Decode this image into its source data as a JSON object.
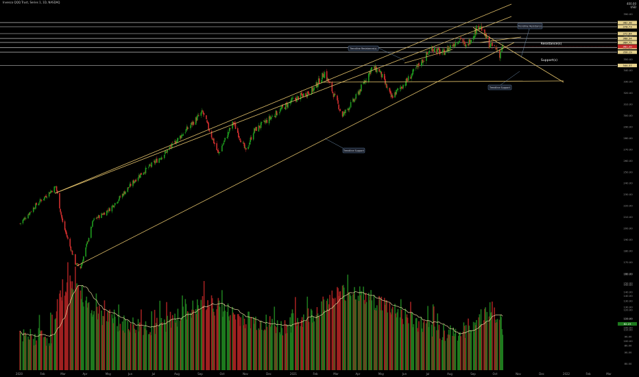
{
  "window": {
    "title": "Invesco QQQ Trust, Series 1, 1D, NASDAQ",
    "price_top": "400.00",
    "currency": "USD"
  },
  "colors": {
    "background": "#000000",
    "up": "#26a69a",
    "up_bar": "#1f9e1f",
    "down": "#d32f2f",
    "trend": "#e3c26b",
    "volume_ma": "#e8d8a0",
    "axis_text": "#9a9a9a"
  },
  "chart_data": [
    {
      "type": "line",
      "subtype": "candlestick",
      "title": "Invesco QQQ Trust, Series 1, 1D, NASDAQ",
      "ylabel": "USD",
      "ylim": [
        80,
        400
      ],
      "y_scale": "log",
      "x_ticks": [
        "2020",
        "Feb",
        "Mar",
        "Apr",
        "May",
        "Jun",
        "Jul",
        "Aug",
        "Sep",
        "Oct",
        "Nov",
        "Dec",
        "2021",
        "Feb",
        "Mar",
        "Apr",
        "May",
        "Jun",
        "Jul",
        "Aug",
        "Sep",
        "Oct",
        "Nov",
        "Dec",
        "2022",
        "Feb",
        "Mar"
      ],
      "y_ticks": [
        400,
        390,
        380,
        370,
        360,
        350,
        340,
        330,
        320,
        310,
        300,
        290,
        280,
        270,
        260,
        250,
        240,
        230,
        220,
        210,
        200,
        190,
        180,
        170,
        160,
        150,
        140,
        130,
        120,
        110,
        100,
        90,
        80
      ],
      "price_path": [
        {
          "x": "2020-01-02",
          "y": 204
        },
        {
          "x": "2020-01-24",
          "y": 221
        },
        {
          "x": "2020-02-19",
          "y": 237
        },
        {
          "x": "2020-02-28",
          "y": 205
        },
        {
          "x": "2020-03-16",
          "y": 169
        },
        {
          "x": "2020-03-23",
          "y": 165
        },
        {
          "x": "2020-04-09",
          "y": 207
        },
        {
          "x": "2020-05-01",
          "y": 217
        },
        {
          "x": "2020-06-08",
          "y": 246
        },
        {
          "x": "2020-07-13",
          "y": 266
        },
        {
          "x": "2020-09-02",
          "y": 303
        },
        {
          "x": "2020-09-23",
          "y": 266
        },
        {
          "x": "2020-10-13",
          "y": 294
        },
        {
          "x": "2020-10-30",
          "y": 268
        },
        {
          "x": "2020-11-09",
          "y": 286
        },
        {
          "x": "2020-12-30",
          "y": 313
        },
        {
          "x": "2021-01-28",
          "y": 323
        },
        {
          "x": "2021-02-12",
          "y": 338
        },
        {
          "x": "2021-03-08",
          "y": 300
        },
        {
          "x": "2021-03-25",
          "y": 315
        },
        {
          "x": "2021-04-16",
          "y": 342
        },
        {
          "x": "2021-04-26",
          "y": 340
        },
        {
          "x": "2021-05-12",
          "y": 316
        },
        {
          "x": "2021-06-01",
          "y": 330
        },
        {
          "x": "2021-07-06",
          "y": 360
        },
        {
          "x": "2021-07-19",
          "y": 355
        },
        {
          "x": "2021-08-13",
          "y": 369
        },
        {
          "x": "2021-08-19",
          "y": 360
        },
        {
          "x": "2021-09-07",
          "y": 381
        },
        {
          "x": "2021-09-20",
          "y": 363
        },
        {
          "x": "2021-09-30",
          "y": 359
        },
        {
          "x": "2021-10-04",
          "y": 354
        },
        {
          "x": "2021-10-08",
          "y": 361
        }
      ],
      "horizontal_levels": [
        {
          "value": 382.38,
          "label": "382.38"
        },
        {
          "value": 378.73,
          "label": "378.73"
        },
        {
          "value": 372.64,
          "label": "372.64"
        },
        {
          "value": 368.34,
          "label": "368.34"
        },
        {
          "value": 364.75,
          "label": "364.75"
        },
        {
          "value": 360.29,
          "label": "360.29"
        },
        {
          "value": 356.19,
          "label": "356.19"
        },
        {
          "value": 344.37,
          "label": "344.37"
        }
      ],
      "last_price": 361.2,
      "annotations": [
        {
          "text": "Trendline Resistance"
        },
        {
          "text": "Trendline Resistance(s)"
        },
        {
          "text": "Resistance(s)"
        },
        {
          "text": "Support(s)"
        },
        {
          "text": "Trendline Support"
        },
        {
          "text": "Trendline Support"
        }
      ]
    },
    {
      "type": "bar",
      "title": "Volume",
      "ylim": [
        75,
        165
      ],
      "y_ticks": [
        160,
        150,
        140,
        130,
        120,
        110,
        100,
        90,
        80
      ],
      "volume_profile": [
        {
          "x": "2020-01-02",
          "v": 88
        },
        {
          "x": "2020-02-15",
          "v": 90
        },
        {
          "x": "2020-02-28",
          "v": 145
        },
        {
          "x": "2020-03-12",
          "v": 152
        },
        {
          "x": "2020-04-10",
          "v": 118
        },
        {
          "x": "2020-05-15",
          "v": 104
        },
        {
          "x": "2020-07-01",
          "v": 100
        },
        {
          "x": "2020-09-08",
          "v": 128
        },
        {
          "x": "2020-10-20",
          "v": 112
        },
        {
          "x": "2020-12-15",
          "v": 100
        },
        {
          "x": "2021-01-27",
          "v": 115
        },
        {
          "x": "2021-02-25",
          "v": 136
        },
        {
          "x": "2021-03-19",
          "v": 142
        },
        {
          "x": "2021-05-12",
          "v": 122
        },
        {
          "x": "2021-07-01",
          "v": 98
        },
        {
          "x": "2021-08-15",
          "v": 94
        },
        {
          "x": "2021-09-20",
          "v": 120
        },
        {
          "x": "2021-10-08",
          "v": 102
        }
      ],
      "volume_ma_label": "82.23"
    }
  ]
}
